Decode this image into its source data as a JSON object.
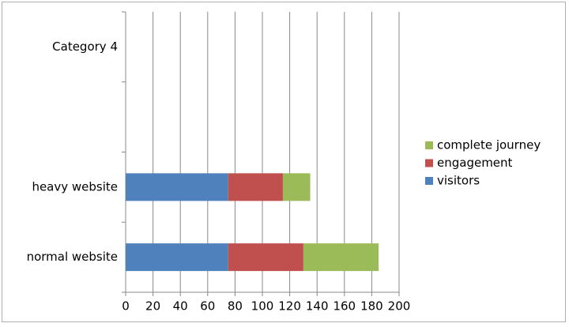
{
  "chart_data": {
    "type": "stacked-bar-horizontal",
    "categories": [
      "normal website",
      "heavy website",
      null,
      "Category 4"
    ],
    "series": [
      {
        "name": "visitors",
        "color": "#4f81bd",
        "values": [
          75,
          75,
          null,
          null
        ]
      },
      {
        "name": "engagement",
        "color": "#c0504d",
        "values": [
          55,
          40,
          null,
          null
        ]
      },
      {
        "name": "complete journey",
        "color": "#9bbb59",
        "values": [
          55,
          20,
          null,
          null
        ]
      }
    ],
    "xlim": [
      0,
      200
    ],
    "xticks": [
      0,
      20,
      40,
      60,
      80,
      100,
      120,
      140,
      160,
      180,
      200
    ],
    "grid": true,
    "legend": "right"
  }
}
